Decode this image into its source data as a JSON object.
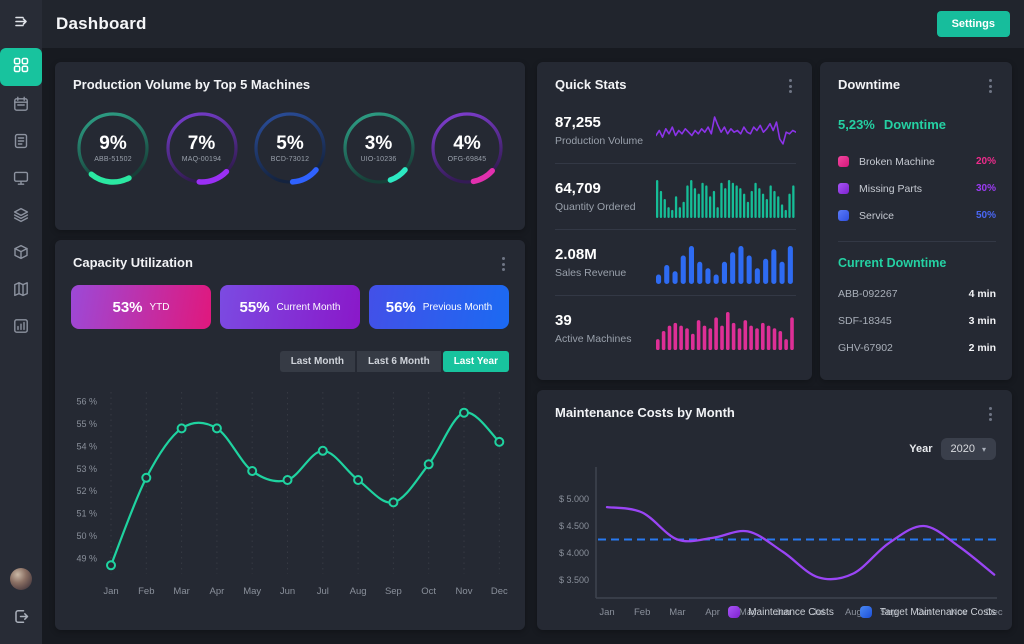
{
  "header": {
    "title": "Dashboard",
    "settings_label": "Settings"
  },
  "colors": {
    "accent_teal": "#18c39e",
    "card_bg": "#252933",
    "page_bg": "#171a20"
  },
  "production_volume": {
    "title": "Production Volume by Top 5 Machines",
    "machines": [
      {
        "id": "ABB-51502",
        "pct": "9%",
        "ring_from": "#2fa58a",
        "ring_to": "#173f38",
        "arc_color": "#2be8a2",
        "arc_len": 40,
        "arc_rot": 62
      },
      {
        "id": "MAQ-00194",
        "pct": "7%",
        "ring_from": "#7a3fd4",
        "ring_to": "#321b52",
        "arc_color": "#9a2ff5",
        "arc_len": 30,
        "arc_rot": 44
      },
      {
        "id": "BCD-73012",
        "pct": "5%",
        "ring_from": "#2b4f9e",
        "ring_to": "#14233f",
        "arc_color": "#2f62ff",
        "arc_len": 27,
        "arc_rot": 40
      },
      {
        "id": "UIO-10236",
        "pct": "3%",
        "ring_from": "#2fa58a",
        "ring_to": "#173f38",
        "arc_color": "#2de9c3",
        "arc_len": 18,
        "arc_rot": 40
      },
      {
        "id": "OFG-69845",
        "pct": "4%",
        "ring_from": "#8440d8",
        "ring_to": "#341b56",
        "arc_color": "#e230ae",
        "arc_len": 22,
        "arc_rot": 42
      }
    ]
  },
  "capacity": {
    "title": "Capacity Utilization",
    "pills": [
      {
        "value": "53%",
        "label": "YTD",
        "grad_from": "#9c49d7",
        "grad_to": "#e0187d"
      },
      {
        "value": "55%",
        "label": "Current Month",
        "grad_from": "#7b4be2",
        "grad_to": "#8a18c9"
      },
      {
        "value": "56%",
        "label": "Previous Month",
        "grad_from": "#4350e8",
        "grad_to": "#1b6af2"
      }
    ],
    "tabs": [
      {
        "label": "Last Month",
        "active": false
      },
      {
        "label": "Last 6 Month",
        "active": false
      },
      {
        "label": "Last Year",
        "active": true
      }
    ],
    "chart_data": {
      "type": "line",
      "x": [
        "Jan",
        "Feb",
        "Mar",
        "Apr",
        "May",
        "Jun",
        "Jul",
        "Aug",
        "Sep",
        "Oct",
        "Nov",
        "Dec"
      ],
      "series": [
        {
          "name": "Capacity Utilization",
          "values": [
            48.7,
            52.6,
            54.8,
            54.8,
            52.9,
            52.5,
            53.8,
            52.5,
            51.5,
            53.2,
            55.5,
            54.2
          ]
        }
      ],
      "yticks": [
        49,
        50,
        51,
        52,
        53,
        54,
        55,
        56
      ],
      "ytick_suffix": " %",
      "ylim": [
        48.4,
        56.6
      ],
      "line_color": "#1fd3a0",
      "grid": "vertical-dotted",
      "legend_position": "none"
    }
  },
  "quick_stats": {
    "title": "Quick Stats",
    "items": [
      {
        "value": "87,255",
        "label": "Production Volume",
        "spark": {
          "type": "line",
          "color": "#8b33e8",
          "values": [
            8,
            11,
            7,
            12,
            9,
            13,
            8,
            11,
            9,
            12,
            10,
            8,
            11,
            9,
            12,
            10,
            13,
            9,
            19,
            14,
            10,
            13,
            9,
            12,
            10,
            11,
            9,
            13,
            10,
            9,
            13,
            11,
            14,
            10,
            12,
            15,
            11,
            16,
            6,
            3,
            10,
            9,
            11,
            10
          ]
        }
      },
      {
        "value": "64,709",
        "label": "Quantity Ordered",
        "spark": {
          "type": "bars",
          "color": "#16bd97",
          "values": [
            14,
            10,
            7,
            4,
            3,
            8,
            4,
            6,
            12,
            14,
            11,
            9,
            13,
            12,
            8,
            10,
            4,
            13,
            11,
            14,
            13,
            12,
            11,
            9,
            6,
            10,
            13,
            11,
            9,
            7,
            12,
            10,
            8,
            5,
            3,
            9,
            12
          ]
        }
      },
      {
        "value": "2.08M",
        "label": "Sales Revenue",
        "spark": {
          "type": "bars",
          "color": "#2e6bf2",
          "values": [
            3,
            6,
            4,
            9,
            12,
            7,
            5,
            3,
            7,
            10,
            12,
            9,
            5,
            8,
            11,
            7,
            12
          ]
        }
      },
      {
        "value": "39",
        "label": "Active Machines",
        "spark": {
          "type": "bars",
          "color": "#de2f96",
          "values": [
            4,
            7,
            9,
            10,
            9,
            8,
            6,
            11,
            9,
            8,
            12,
            9,
            14,
            10,
            8,
            11,
            9,
            8,
            10,
            9,
            8,
            7,
            4,
            12
          ]
        }
      }
    ]
  },
  "downtime": {
    "title": "Downtime",
    "headline_value": "5,23%",
    "headline_label": "Downtime",
    "legend": [
      {
        "label": "Broken Machine",
        "pct": "20%",
        "color": "#ee2b8c",
        "grad_from": "#f2479f",
        "grad_to": "#d4177a"
      },
      {
        "label": "Missing Parts",
        "pct": "30%",
        "color": "#9b3bf2",
        "grad_from": "#a855f7",
        "grad_to": "#7e22ce"
      },
      {
        "label": "Service",
        "pct": "50%",
        "color": "#4a67f5",
        "grad_from": "#5b7bf7",
        "grad_to": "#2f4fe0"
      }
    ],
    "current_title": "Current Downtime",
    "entries": [
      {
        "id": "ABB-092267",
        "duration": "4 min"
      },
      {
        "id": "SDF-18345",
        "duration": "3 min"
      },
      {
        "id": "GHV-67902",
        "duration": "2 min"
      }
    ]
  },
  "maintenance": {
    "title": "Maintenance Costs by Month",
    "year_label": "Year",
    "year_value": "2020",
    "chart_data": {
      "type": "line",
      "x": [
        "Jan",
        "Feb",
        "Mar",
        "Apr",
        "May",
        "Jun",
        "Jul",
        "Aug",
        "Sep",
        "Oct",
        "Nov",
        "Dec"
      ],
      "series": [
        {
          "name": "Maintenance Costs",
          "color": "#9a45f5",
          "values": [
            4850,
            4750,
            4250,
            4280,
            4400,
            4020,
            3550,
            3620,
            4180,
            4500,
            4120,
            3600
          ]
        },
        {
          "name": "Target Maintenance Costs",
          "color": "#2879f0",
          "style": "dashed",
          "values": [
            4250,
            4250,
            4250,
            4250,
            4250,
            4250,
            4250,
            4250,
            4250,
            4250,
            4250,
            4250
          ]
        }
      ],
      "target_value": 4250,
      "yticks": [
        5000,
        4500,
        4000,
        3500
      ],
      "ytick_format": "$ #.###",
      "ytick_labels": [
        "$ 5.000",
        "$ 4.500",
        "$ 4.000",
        "$ 3.500"
      ],
      "ylim": [
        3170,
        5220
      ],
      "legend_position": "bottom-right"
    },
    "legend": [
      {
        "label": "Maintenance Costs",
        "grad_from": "#a855f7",
        "grad_to": "#7e22ce"
      },
      {
        "label": "Target Maintenance Costs",
        "grad_from": "#4a8af5",
        "grad_to": "#1d4fd7"
      }
    ]
  }
}
